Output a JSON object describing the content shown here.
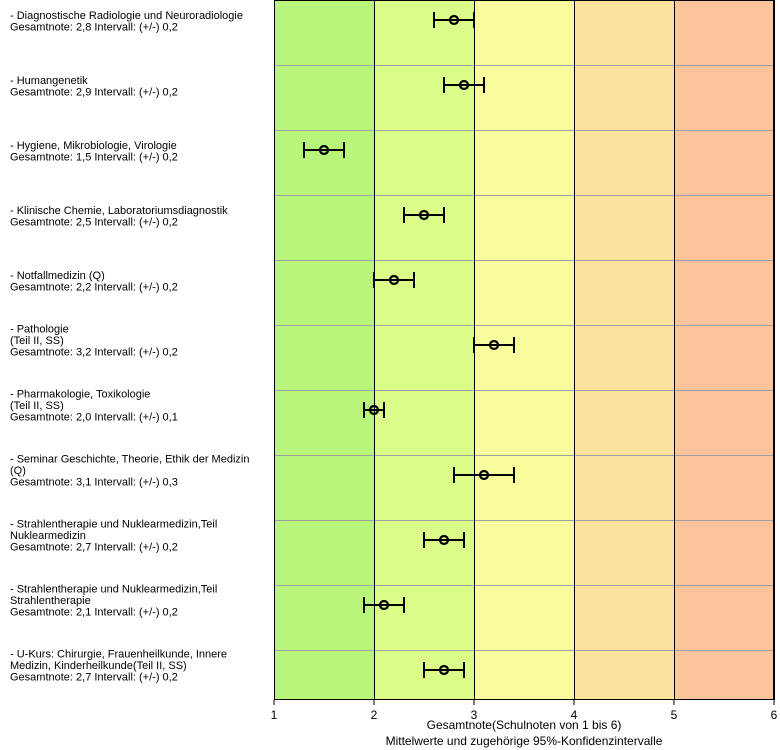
{
  "chart_data": {
    "type": "errorbar",
    "xlabel": "Gesamtnote(Schulnoten von 1 bis 6)",
    "xlabel2": "Mittelwerte und zugehörige 95%-Konfidenzintervalle",
    "xlim": [
      1,
      6
    ],
    "xticks": [
      "1",
      "2",
      "3",
      "4",
      "5",
      "6"
    ],
    "zone_colors": [
      "#b8f57a",
      "#dcfc8a",
      "#f8fc9c",
      "#fce29c",
      "#fcc49c"
    ],
    "grid": true,
    "items": [
      {
        "lines": [
          "- Diagnostische Radiologie und Neuroradiologie",
          "Gesamtnote: 2,8 Intervall: (+/-) 0,2"
        ],
        "mean": 2.8,
        "ci": 0.2
      },
      {
        "lines": [
          "- Humangenetik",
          "Gesamtnote: 2,9 Intervall: (+/-) 0,2"
        ],
        "mean": 2.9,
        "ci": 0.2
      },
      {
        "lines": [
          "- Hygiene, Mikrobiologie, Virologie",
          "Gesamtnote: 1,5 Intervall: (+/-) 0,2"
        ],
        "mean": 1.5,
        "ci": 0.2
      },
      {
        "lines": [
          "- Klinische Chemie, Laboratoriumsdiagnostik",
          "Gesamtnote: 2,5 Intervall: (+/-) 0,2"
        ],
        "mean": 2.5,
        "ci": 0.2
      },
      {
        "lines": [
          "- Notfallmedizin (Q)",
          "Gesamtnote: 2,2 Intervall: (+/-) 0,2"
        ],
        "mean": 2.2,
        "ci": 0.2
      },
      {
        "lines": [
          "- Pathologie",
          "(Teil II, SS)",
          "Gesamtnote: 3,2 Intervall: (+/-) 0,2"
        ],
        "mean": 3.2,
        "ci": 0.2
      },
      {
        "lines": [
          "- Pharmakologie, Toxikologie",
          "(Teil II, SS)",
          "Gesamtnote: 2,0 Intervall: (+/-) 0,1"
        ],
        "mean": 2.0,
        "ci": 0.1
      },
      {
        "lines": [
          "- Seminar Geschichte, Theorie, Ethik der Medizin",
          "(Q)",
          "Gesamtnote: 3,1 Intervall: (+/-) 0,3"
        ],
        "mean": 3.1,
        "ci": 0.3
      },
      {
        "lines": [
          "- Strahlentherapie und Nuklearmedizin,Teil",
          "Nuklearmedizin",
          "Gesamtnote: 2,7 Intervall: (+/-) 0,2"
        ],
        "mean": 2.7,
        "ci": 0.2
      },
      {
        "lines": [
          "- Strahlentherapie und Nuklearmedizin,Teil",
          "Strahlentherapie",
          "Gesamtnote: 2,1 Intervall: (+/-) 0,2"
        ],
        "mean": 2.1,
        "ci": 0.2
      },
      {
        "lines": [
          "- U-Kurs: Chirurgie, Frauenheilkunde, Innere",
          "Medizin, Kinderheilkunde(Teil II, SS)",
          "Gesamtnote: 2,7 Intervall: (+/-) 0,2"
        ],
        "mean": 2.7,
        "ci": 0.2
      }
    ]
  }
}
